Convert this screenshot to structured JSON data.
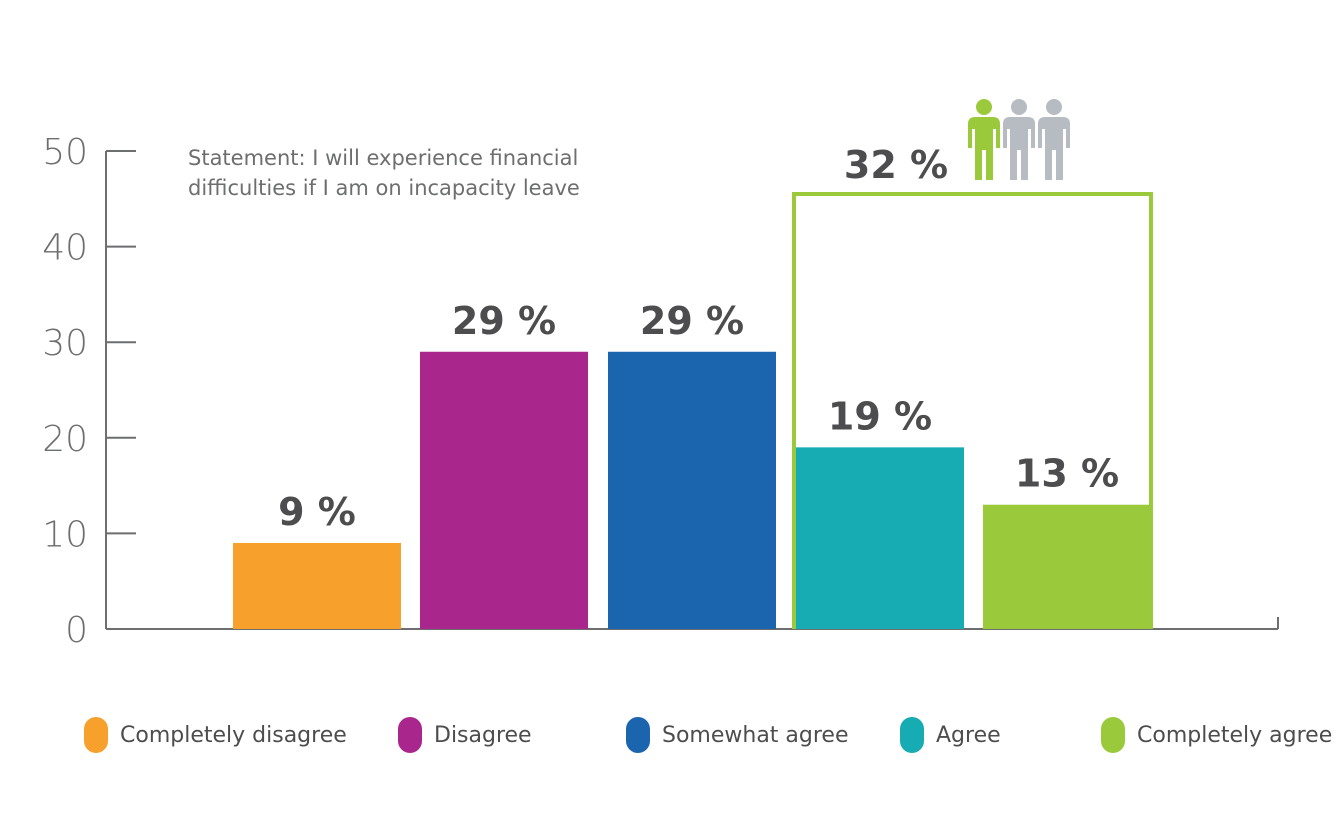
{
  "chart_data": {
    "type": "bar",
    "annotation": "Statement: I will experience financial difficulties if I am on incapacity leave",
    "categories": [
      "Completely disagree",
      "Disagree",
      "Somewhat agree",
      "Agree",
      "Completely agree"
    ],
    "values": [
      9,
      29,
      29,
      19,
      13
    ],
    "value_labels": [
      "9 %",
      "29 %",
      "29 %",
      "19 %",
      "13 %"
    ],
    "colors": [
      "#f7a02c",
      "#a9278d",
      "#1b64ae",
      "#17abb4",
      "#9aca3c"
    ],
    "ylim": [
      0,
      50
    ],
    "yticks": [
      0,
      10,
      20,
      30,
      40,
      50
    ],
    "ytick_labels": [
      "0",
      "10",
      "20",
      "30",
      "40",
      "50"
    ],
    "grid": false,
    "legend_position": "bottom",
    "group_highlight": {
      "categories": [
        "Agree",
        "Completely agree"
      ],
      "value": 32,
      "label": "32 %",
      "color": "#9aca3c",
      "icon": "people-icon",
      "icon_colors": [
        "#9aca3c",
        "#b6bcc2",
        "#b6bcc2"
      ]
    }
  },
  "legend": {
    "items": [
      {
        "label": "Completely disagree",
        "color": "#f7a02c"
      },
      {
        "label": "Disagree",
        "color": "#a9278d"
      },
      {
        "label": "Somewhat agree",
        "color": "#1b64ae"
      },
      {
        "label": "Agree",
        "color": "#17abb4"
      },
      {
        "label": "Completely agree",
        "color": "#9aca3c"
      }
    ]
  },
  "colors": {
    "axis": "#6d6e70",
    "label_text": "#4d4d4f"
  }
}
